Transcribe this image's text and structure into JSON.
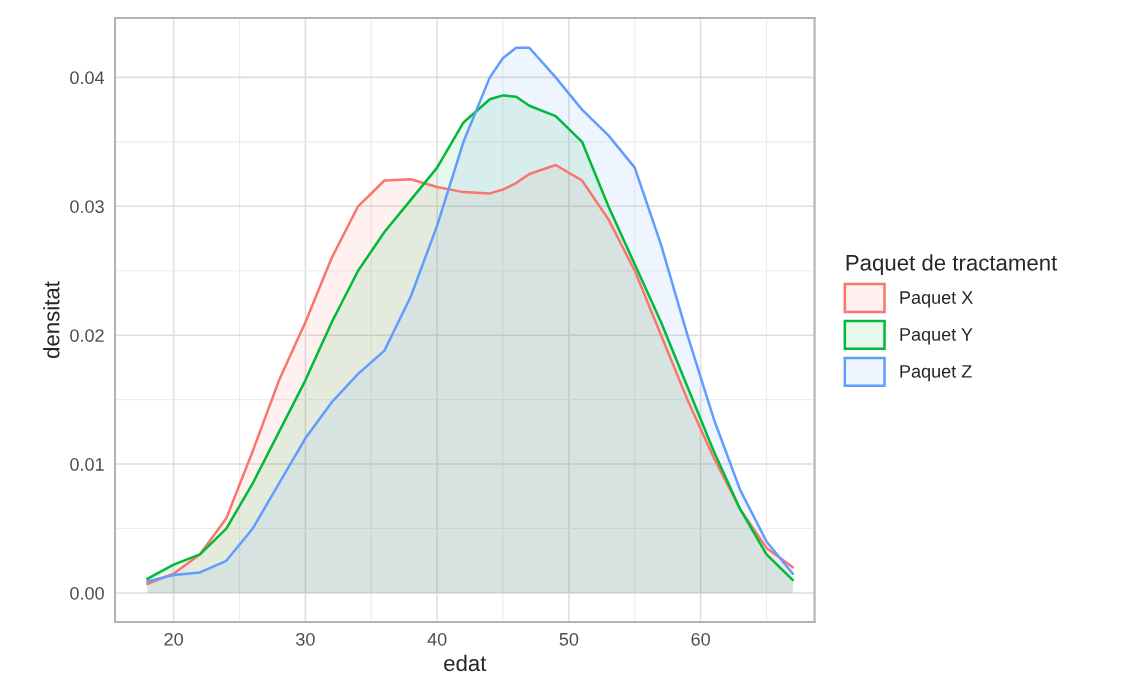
{
  "chart_data": {
    "type": "area",
    "xlabel": "edat",
    "ylabel": "densitat",
    "legend_title": "Paquet de tractament",
    "legend": "right",
    "grid": true,
    "x": [
      18,
      20,
      22,
      24,
      26,
      28,
      30,
      32,
      34,
      36,
      38,
      40,
      42,
      44,
      45,
      46,
      47,
      49,
      51,
      53,
      55,
      57,
      59,
      61,
      63,
      65,
      67
    ],
    "xlim": [
      15.55,
      68.65
    ],
    "ylim": [
      -0.00225,
      0.0446
    ],
    "xticks": [
      20,
      30,
      40,
      50,
      60
    ],
    "yticks": [
      {
        "value": 0,
        "label": "0.00"
      },
      {
        "value": 0.01,
        "label": "0.01"
      },
      {
        "value": 0.02,
        "label": "0.02"
      },
      {
        "value": 0.03,
        "label": "0.03"
      },
      {
        "value": 0.04,
        "label": "0.04"
      }
    ],
    "series": [
      {
        "name": "Paquet X",
        "color": "#f8766d",
        "values": [
          0.0007,
          0.0015,
          0.003,
          0.0058,
          0.011,
          0.0165,
          0.021,
          0.026,
          0.03,
          0.032,
          0.0321,
          0.0315,
          0.0311,
          0.031,
          0.0313,
          0.0318,
          0.0325,
          0.0332,
          0.032,
          0.029,
          0.025,
          0.02,
          0.015,
          0.0105,
          0.0065,
          0.0035,
          0.002
        ]
      },
      {
        "name": "Paquet Y",
        "color": "#00ba38",
        "values": [
          0.0011,
          0.0022,
          0.003,
          0.005,
          0.0085,
          0.0125,
          0.0165,
          0.021,
          0.025,
          0.028,
          0.0305,
          0.033,
          0.0365,
          0.0383,
          0.0386,
          0.0385,
          0.0378,
          0.037,
          0.035,
          0.03,
          0.0255,
          0.021,
          0.016,
          0.011,
          0.0065,
          0.003,
          0.001
        ]
      },
      {
        "name": "Paquet Z",
        "color": "#619cff",
        "values": [
          0.0009,
          0.0014,
          0.0016,
          0.0025,
          0.005,
          0.0085,
          0.012,
          0.0148,
          0.017,
          0.0188,
          0.023,
          0.0285,
          0.035,
          0.04,
          0.0415,
          0.0423,
          0.0423,
          0.04,
          0.0375,
          0.0355,
          0.033,
          0.027,
          0.02,
          0.0135,
          0.008,
          0.004,
          0.0015
        ]
      }
    ]
  }
}
